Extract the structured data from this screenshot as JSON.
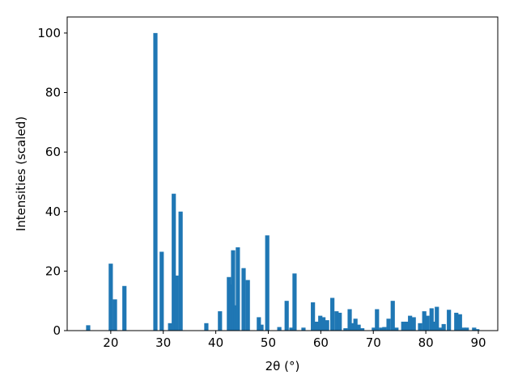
{
  "chart_data": {
    "type": "bar",
    "x_label": "2θ (°)",
    "y_label": "Intensities (scaled)",
    "color": "#1f77b4",
    "bar_width": 0.8,
    "x": [
      15.7,
      20.0,
      20.8,
      22.6,
      28.5,
      29.7,
      31.3,
      32.0,
      32.5,
      33.3,
      38.2,
      40.8,
      42.5,
      43.0,
      43.3,
      43.7,
      44.2,
      45.3,
      46.1,
      48.2,
      48.7,
      49.8,
      52.1,
      53.5,
      54.4,
      55.0,
      56.7,
      58.5,
      59.2,
      59.9,
      60.5,
      61.2,
      62.2,
      63.0,
      63.6,
      64.7,
      65.5,
      65.9,
      66.6,
      67.2,
      67.9,
      70.1,
      70.7,
      71.5,
      72.1,
      72.9,
      73.7,
      74.4,
      75.7,
      76.4,
      77.0,
      77.7,
      78.9,
      79.7,
      80.3,
      81.1,
      81.7,
      82.1,
      82.7,
      83.4,
      84.4,
      85.8,
      86.5,
      87.2,
      87.8,
      89.2,
      89.8
    ],
    "values": [
      1.8,
      22.5,
      10.5,
      15,
      100,
      26.5,
      2.5,
      46,
      18.5,
      40,
      2.5,
      6.5,
      18,
      15.5,
      27,
      8.5,
      28,
      21,
      17,
      4.5,
      2,
      32,
      1.2,
      10,
      1,
      19.2,
      1,
      9.5,
      3,
      5,
      4.5,
      3.5,
      11,
      6.5,
      6,
      0.8,
      7.2,
      2.5,
      4,
      2,
      0.8,
      1,
      7.2,
      1,
      1.2,
      4,
      10,
      1,
      3,
      3,
      5,
      4.5,
      2.5,
      6.5,
      5,
      7.5,
      3,
      8,
      1,
      2.2,
      7,
      6,
      5.5,
      1,
      1,
      1,
      0.5
    ],
    "xlim": [
      11.7,
      93.7
    ],
    "ylim": [
      0,
      105.4
    ],
    "xticks": [
      20,
      30,
      40,
      50,
      60,
      70,
      80,
      90
    ],
    "yticks": [
      0,
      20,
      40,
      60,
      80,
      100
    ]
  }
}
